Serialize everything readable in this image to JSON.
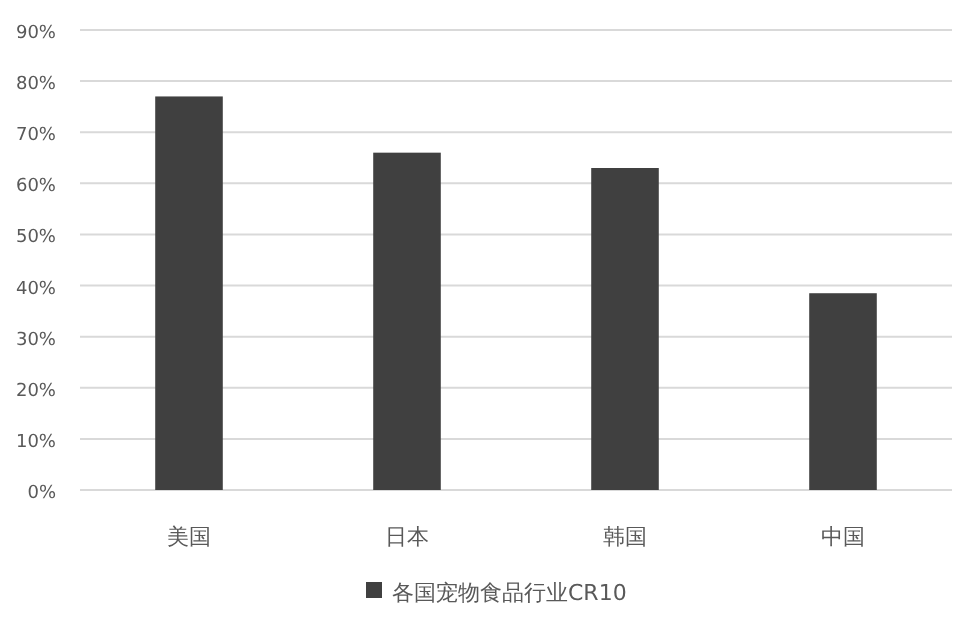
{
  "chart_data": {
    "type": "bar",
    "categories": [
      "美国",
      "日本",
      "韩国",
      "中国"
    ],
    "series": [
      {
        "name": "各国宠物食品行业CR10",
        "color": "#404040",
        "values": [
          77,
          66,
          63,
          38.5
        ]
      }
    ],
    "ylim": [
      0,
      90
    ],
    "yticks": [
      {
        "value": 0,
        "label": "0%"
      },
      {
        "value": 10,
        "label": "10%"
      },
      {
        "value": 20,
        "label": "20%"
      },
      {
        "value": 30,
        "label": "30%"
      },
      {
        "value": 40,
        "label": "40%"
      },
      {
        "value": 50,
        "label": "50%"
      },
      {
        "value": 60,
        "label": "60%"
      },
      {
        "value": 70,
        "label": "70%"
      },
      {
        "value": 80,
        "label": "80%"
      },
      {
        "value": 90,
        "label": "90%"
      }
    ],
    "grid": "y",
    "legend": "bottom"
  }
}
